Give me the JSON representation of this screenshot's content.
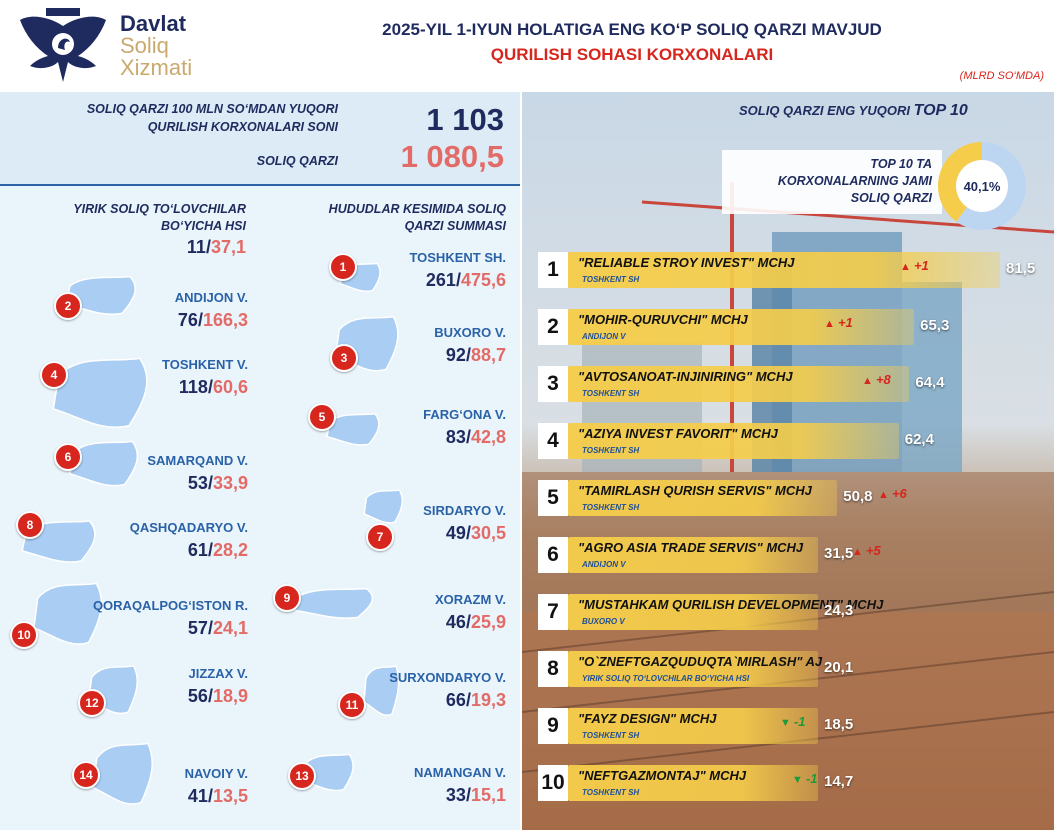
{
  "logo": {
    "line1": "Davlat",
    "line2": "Soliq",
    "line3": "Xizmati"
  },
  "header": {
    "title_line1": "2025-YIL 1-IYUN HOLATIGA ENG KO‘P SOLIQ QARZI MAVJUD",
    "title_line2": "QURILISH SOHASI KORXONALARI",
    "unit": "(MLRD SO‘MDA)"
  },
  "summary": {
    "count_label_line1": "SOLIQ QARZI 100 MLN SO‘MDAN YUQORI",
    "count_label_line2": "QURILISH KORXONALARI SONI",
    "count_value": "1 103",
    "debt_label": "SOLIQ QARZI",
    "debt_value": "1 080,5",
    "count_color": "#1f2b5e",
    "debt_color": "#e26b67"
  },
  "large_taxpayers": {
    "label_line1": "YIRIK SOLIQ TO‘LOVCHILAR",
    "label_line2": "BO‘YICHA HSI",
    "count": "11",
    "sep": "/",
    "debt": "37,1"
  },
  "regions_heading": {
    "line1": "HUDUDLAR KESIMIDA SOLIQ",
    "line2": "QARZI SUMMASI"
  },
  "chart_data": [
    {
      "type": "table",
      "title": "HUDUDLAR KESIMIDA SOLIQ QARZI SUMMASI",
      "columns": [
        "rank",
        "region",
        "count",
        "debt"
      ],
      "rows": [
        {
          "rank": "1",
          "region": "TOSHKENT SH.",
          "count": "261",
          "debt": "475,6"
        },
        {
          "rank": "2",
          "region": "ANDIJON V.",
          "count": "76",
          "debt": "166,3"
        },
        {
          "rank": "3",
          "region": "BUXORO V.",
          "count": "92",
          "debt": "88,7"
        },
        {
          "rank": "4",
          "region": "TOSHKENT V.",
          "count": "118",
          "debt": "60,6"
        },
        {
          "rank": "5",
          "region": "FARG‘ONA V.",
          "count": "83",
          "debt": "42,8"
        },
        {
          "rank": "6",
          "region": "SAMARQAND V.",
          "count": "53",
          "debt": "33,9"
        },
        {
          "rank": "7",
          "region": "SIRDARYO V.",
          "count": "49",
          "debt": "30,5"
        },
        {
          "rank": "8",
          "region": "QASHQADARYO V.",
          "count": "61",
          "debt": "28,2"
        },
        {
          "rank": "9",
          "region": "XORAZM V.",
          "count": "46",
          "debt": "25,9"
        },
        {
          "rank": "10",
          "region": "QORAQALPOG‘ISTON R.",
          "count": "57",
          "debt": "24,1"
        },
        {
          "rank": "11",
          "region": "SURXONDARYO V.",
          "count": "66",
          "debt": "19,3"
        },
        {
          "rank": "12",
          "region": "JIZZAX V.",
          "count": "56",
          "debt": "18,9"
        },
        {
          "rank": "13",
          "region": "NAMANGAN V.",
          "count": "33",
          "debt": "15,1"
        },
        {
          "rank": "14",
          "region": "NAVOIY V.",
          "count": "41",
          "debt": "13,5"
        }
      ]
    },
    {
      "type": "bar",
      "title": "SOLIQ QARZI ENG YUQORI TOP 10",
      "categories": [
        "\"RELIABLE STROY INVEST\" MCHJ",
        "\"MOHIR-QURUVCHI\" MCHJ",
        "\"AVTOSANOAT-INJINIRING\" MCHJ",
        "\"AZIYA INVEST FAVORIT\" MCHJ",
        "\"TAMIRLASH QURISH SERVIS\" MCHJ",
        "\"AGRO ASIA TRADE SERVIS\" MCHJ",
        "\"MUSTAHKAM QURILISH DEVELOPMENT\" MCHJ",
        "\"O`ZNEFTGAZQUDUQTA`MIRLASH\" AJ",
        "\"FAYZ DESIGN\" MCHJ",
        "\"NEFTGAZMONTAJ\" MCHJ"
      ],
      "values": [
        81.5,
        65.3,
        64.4,
        62.4,
        50.8,
        31.5,
        24.3,
        20.1,
        18.5,
        14.7
      ],
      "value_labels": [
        "81,5",
        "65,3",
        "64,4",
        "62,4",
        "50,8",
        "31,5",
        "24,3",
        "20,1",
        "18,5",
        "14,7"
      ],
      "ranks": [
        "1",
        "2",
        "3",
        "4",
        "5",
        "6",
        "7",
        "8",
        "9",
        "10"
      ],
      "regions": [
        "TOSHKENT SH",
        "ANDIJON V",
        "TOSHKENT SH",
        "TOSHKENT SH",
        "TOSHKENT SH",
        "ANDIJON V",
        "BUXORO V",
        "YIRIK SOLIQ TO‘LOVCHILAR BO‘YICHA HSI",
        "TOSHKENT SH",
        "TOSHKENT SH"
      ],
      "changes": [
        "+1",
        "+1",
        "+8",
        "",
        "+6",
        "+5",
        "",
        "",
        "-1",
        "-1"
      ],
      "bar_color": "#f5cd4a",
      "up_color": "#d7261e",
      "down_color": "#1d9b3a"
    },
    {
      "type": "pie",
      "title": "TOP 10 TA KORXONALARNING JAMI SOLIQ QARZI",
      "values": [
        40.1,
        59.9
      ],
      "center_label": "40,1%",
      "colors": [
        "#f5cd4a",
        "#bcd6f2"
      ]
    }
  ],
  "top10_heading": {
    "prefix": "SOLIQ QARZI ENG YUQORI",
    "suffix": "TOP 10"
  },
  "share_caption": {
    "line1": "TOP 10 TA",
    "line2": "KORXONALARNING JAMI",
    "line3": "SOLIQ QARZI"
  }
}
